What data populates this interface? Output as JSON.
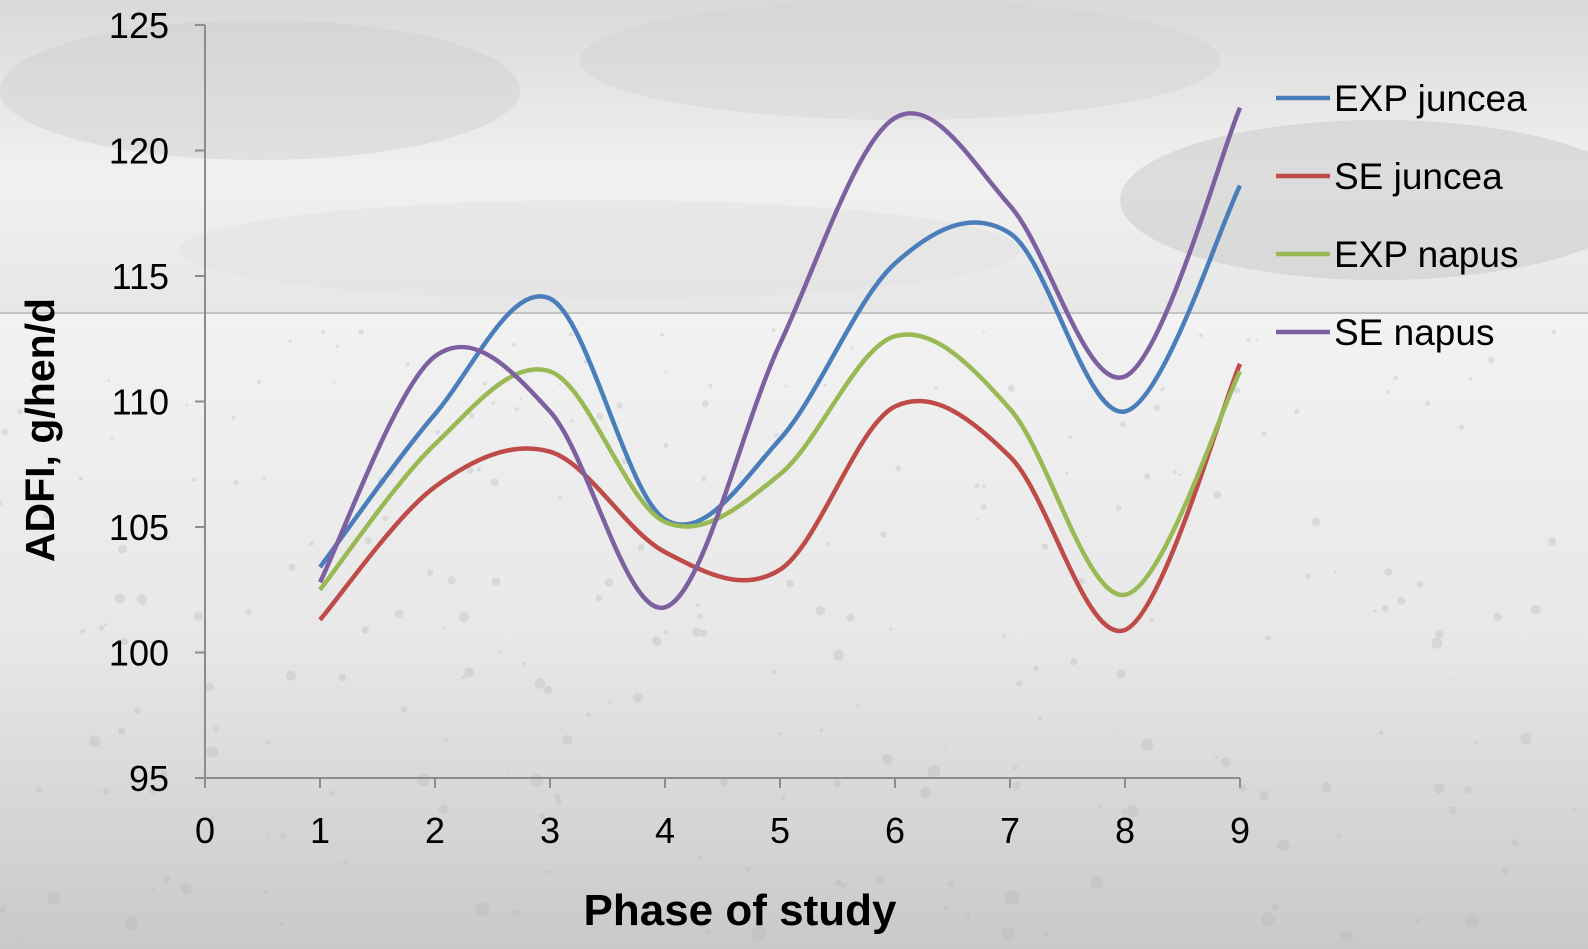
{
  "chart_data": {
    "type": "line",
    "smooth": true,
    "xlabel": "Phase of study",
    "ylabel": "ADFI, g/hen/d",
    "xlim": [
      0,
      9
    ],
    "ylim": [
      95,
      125
    ],
    "xticks": [
      0,
      1,
      2,
      3,
      4,
      5,
      6,
      7,
      8,
      9
    ],
    "yticks": [
      95,
      100,
      105,
      110,
      115,
      120,
      125
    ],
    "grid": false,
    "legend_position": "right",
    "x": [
      1,
      2,
      3,
      4,
      5,
      6,
      7,
      8,
      9
    ],
    "series": [
      {
        "name": "EXP juncea",
        "color": "#4a7ebb",
        "values": [
          103.4,
          109.5,
          114.1,
          105.3,
          108.5,
          115.5,
          116.7,
          109.6,
          118.6
        ]
      },
      {
        "name": "SE juncea",
        "color": "#be4b48",
        "values": [
          101.3,
          106.6,
          108.0,
          104.0,
          103.3,
          109.8,
          107.8,
          100.9,
          111.5
        ]
      },
      {
        "name": "EXP napus",
        "color": "#98b954",
        "values": [
          102.5,
          108.3,
          111.2,
          105.2,
          107.1,
          112.6,
          109.7,
          102.3,
          111.2
        ]
      },
      {
        "name": "SE napus",
        "color": "#7d60a0",
        "values": [
          102.8,
          111.8,
          109.6,
          101.8,
          112.3,
          121.3,
          117.8,
          111.0,
          121.7
        ]
      }
    ]
  }
}
